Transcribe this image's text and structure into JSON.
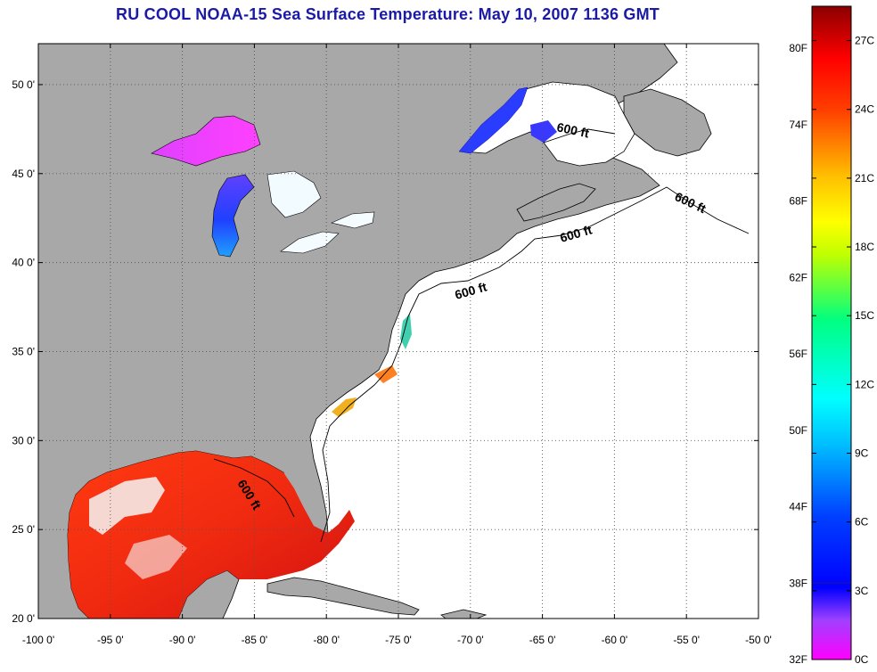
{
  "title": "RU COOL  NOAA-15  Sea Surface Temperature:  May 10, 2007 1136 GMT",
  "map": {
    "lon_ticks": [
      "-100 0'",
      "-95 0'",
      "-90 0'",
      "-85 0'",
      "-80 0'",
      "-75 0'",
      "-70 0'",
      "-65 0'",
      "-60 0'",
      "-55 0'",
      "-50 0'"
    ],
    "lat_ticks": [
      "50 0'",
      "45 0'",
      "40 0'",
      "35 0'",
      "30 0'",
      "25 0'",
      "20 0'"
    ],
    "isobath_labels": [
      "600 ft",
      "600 ft",
      "600 ft",
      "600 ft",
      "600 ft"
    ],
    "colors": {
      "land": "#a8a8a8",
      "ocean": "#ffffff",
      "grid": "#555555"
    }
  },
  "colorbar": {
    "fahrenheit": [
      "80F",
      "74F",
      "68F",
      "62F",
      "56F",
      "50F",
      "44F",
      "38F",
      "32F"
    ],
    "celsius": [
      "27C",
      "24C",
      "21C",
      "18C",
      "15C",
      "12C",
      "9C",
      "6C",
      "3C",
      "0C"
    ],
    "range_c": [
      0,
      28.5
    ]
  }
}
